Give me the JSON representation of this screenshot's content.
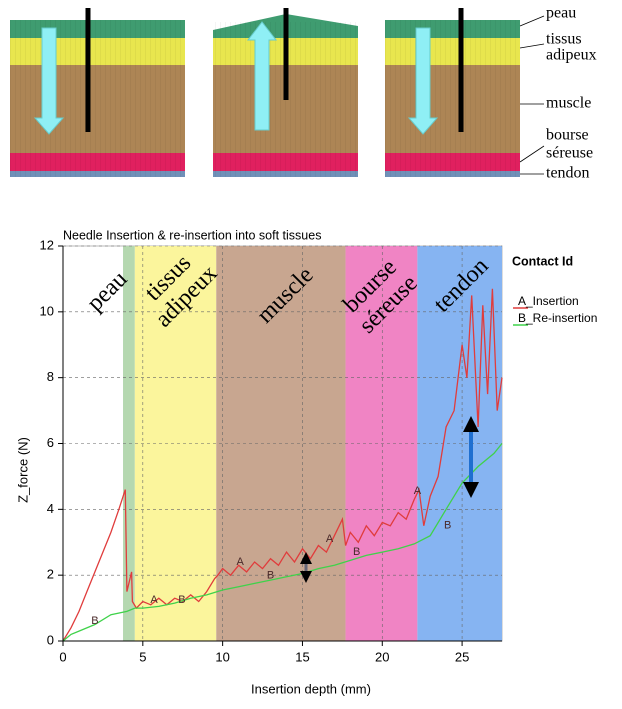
{
  "diagram": {
    "labels": [
      [
        "peau"
      ],
      [
        "tissus",
        "adipeux"
      ],
      [
        "muscle"
      ],
      [
        "bourse",
        "séreuse"
      ],
      [
        "tendon"
      ]
    ]
  },
  "chart_data": {
    "type": "line",
    "title": "Needle Insertion & re-insertion into soft tissues",
    "x_label": "Insertion depth (mm)",
    "y_label": "Z_force (N)",
    "xlim": [
      0,
      27.5
    ],
    "xticks": [
      0,
      5,
      10,
      15,
      20,
      25
    ],
    "ylim": [
      0,
      12
    ],
    "yticks": [
      0,
      2,
      4,
      6,
      8,
      10,
      12
    ],
    "grid": true,
    "legend_title": "Contact Id",
    "legend": "right",
    "regions": [
      {
        "label": [
          "peau"
        ],
        "start": 3.76,
        "end": 4.5,
        "color": "#b5d8b0"
      },
      {
        "label": [
          "tissus",
          "adipeux"
        ],
        "start": 4.5,
        "end": 9.6,
        "color": "#fbf59c"
      },
      {
        "label": [
          "muscle"
        ],
        "start": 9.6,
        "end": 17.7,
        "color": "#c8a690"
      },
      {
        "label": [
          "bourse",
          "séreuse"
        ],
        "start": 17.7,
        "end": 22.2,
        "color": "#f084c4"
      },
      {
        "label": [
          "tendon"
        ],
        "start": 22.2,
        "end": 27.5,
        "color": "#86b4f2"
      }
    ],
    "series": [
      {
        "name": "A_Insertion",
        "color": "#e03c3c",
        "x": [
          0,
          0.5,
          1,
          1.5,
          2,
          2.5,
          3,
          3.5,
          3.9,
          4.0,
          4.3,
          4.35,
          4.6,
          5,
          5.5,
          6,
          6.5,
          7,
          7.5,
          8,
          8.5,
          9,
          9.5,
          9.7,
          10,
          10.5,
          11,
          11.5,
          12,
          12.5,
          13,
          13.5,
          14,
          14.5,
          15,
          15.5,
          16,
          16.5,
          17,
          17.5,
          17.7,
          18,
          18.5,
          19,
          19.5,
          20,
          20.5,
          21,
          21.5,
          22,
          22.3,
          22.6,
          23,
          23.5,
          24,
          24.5,
          25,
          25.3,
          25.6,
          26,
          26.3,
          26.6,
          26.9,
          27.2,
          27.5
        ],
        "values": [
          0,
          0.4,
          0.9,
          1.5,
          2.1,
          2.7,
          3.3,
          4.0,
          4.6,
          1.5,
          2.1,
          1.2,
          1.0,
          1.2,
          1.1,
          1.3,
          1.1,
          1.3,
          1.2,
          1.4,
          1.2,
          1.5,
          1.9,
          2.0,
          2.2,
          2.0,
          2.3,
          2.1,
          2.4,
          2.2,
          2.5,
          2.3,
          2.7,
          2.4,
          2.8,
          2.5,
          2.9,
          2.7,
          3.2,
          3.7,
          2.9,
          3.3,
          3.0,
          3.5,
          3.2,
          3.6,
          3.5,
          3.9,
          3.7,
          4.3,
          4.6,
          3.5,
          4.4,
          5.0,
          6.5,
          7.0,
          9.0,
          8.0,
          10.5,
          6.5,
          10.2,
          7.5,
          10.7,
          7.0,
          8.0
        ]
      },
      {
        "name": "B_Re-insertion",
        "color": "#3fd24a",
        "x": [
          0,
          0.5,
          1,
          2,
          3,
          4,
          4.5,
          5,
          6,
          7,
          8,
          9,
          10,
          11,
          12,
          13,
          14,
          15,
          16,
          17,
          18,
          19,
          20,
          21,
          22,
          23,
          24,
          25,
          26,
          27,
          27.5
        ],
        "values": [
          0,
          0.2,
          0.3,
          0.5,
          0.8,
          0.9,
          1.0,
          1.0,
          1.05,
          1.15,
          1.3,
          1.4,
          1.55,
          1.65,
          1.75,
          1.85,
          1.95,
          2.05,
          2.2,
          2.3,
          2.45,
          2.6,
          2.7,
          2.8,
          2.95,
          3.2,
          4.0,
          4.8,
          5.3,
          5.7,
          6.0
        ]
      }
    ],
    "annotations": [
      {
        "text": "B",
        "x": 2.0,
        "y": 0.6
      },
      {
        "text": "A",
        "x": 5.7,
        "y": 1.25
      },
      {
        "text": "B",
        "x": 7.45,
        "y": 1.25
      },
      {
        "text": "A",
        "x": 11.1,
        "y": 2.4
      },
      {
        "text": "B",
        "x": 13.0,
        "y": 1.98
      },
      {
        "text": "A",
        "x": 16.7,
        "y": 3.1
      },
      {
        "text": "B",
        "x": 18.4,
        "y": 2.7
      },
      {
        "text": "A",
        "x": 22.2,
        "y": 4.55
      },
      {
        "text": "B",
        "x": 24.1,
        "y": 3.5
      }
    ]
  }
}
